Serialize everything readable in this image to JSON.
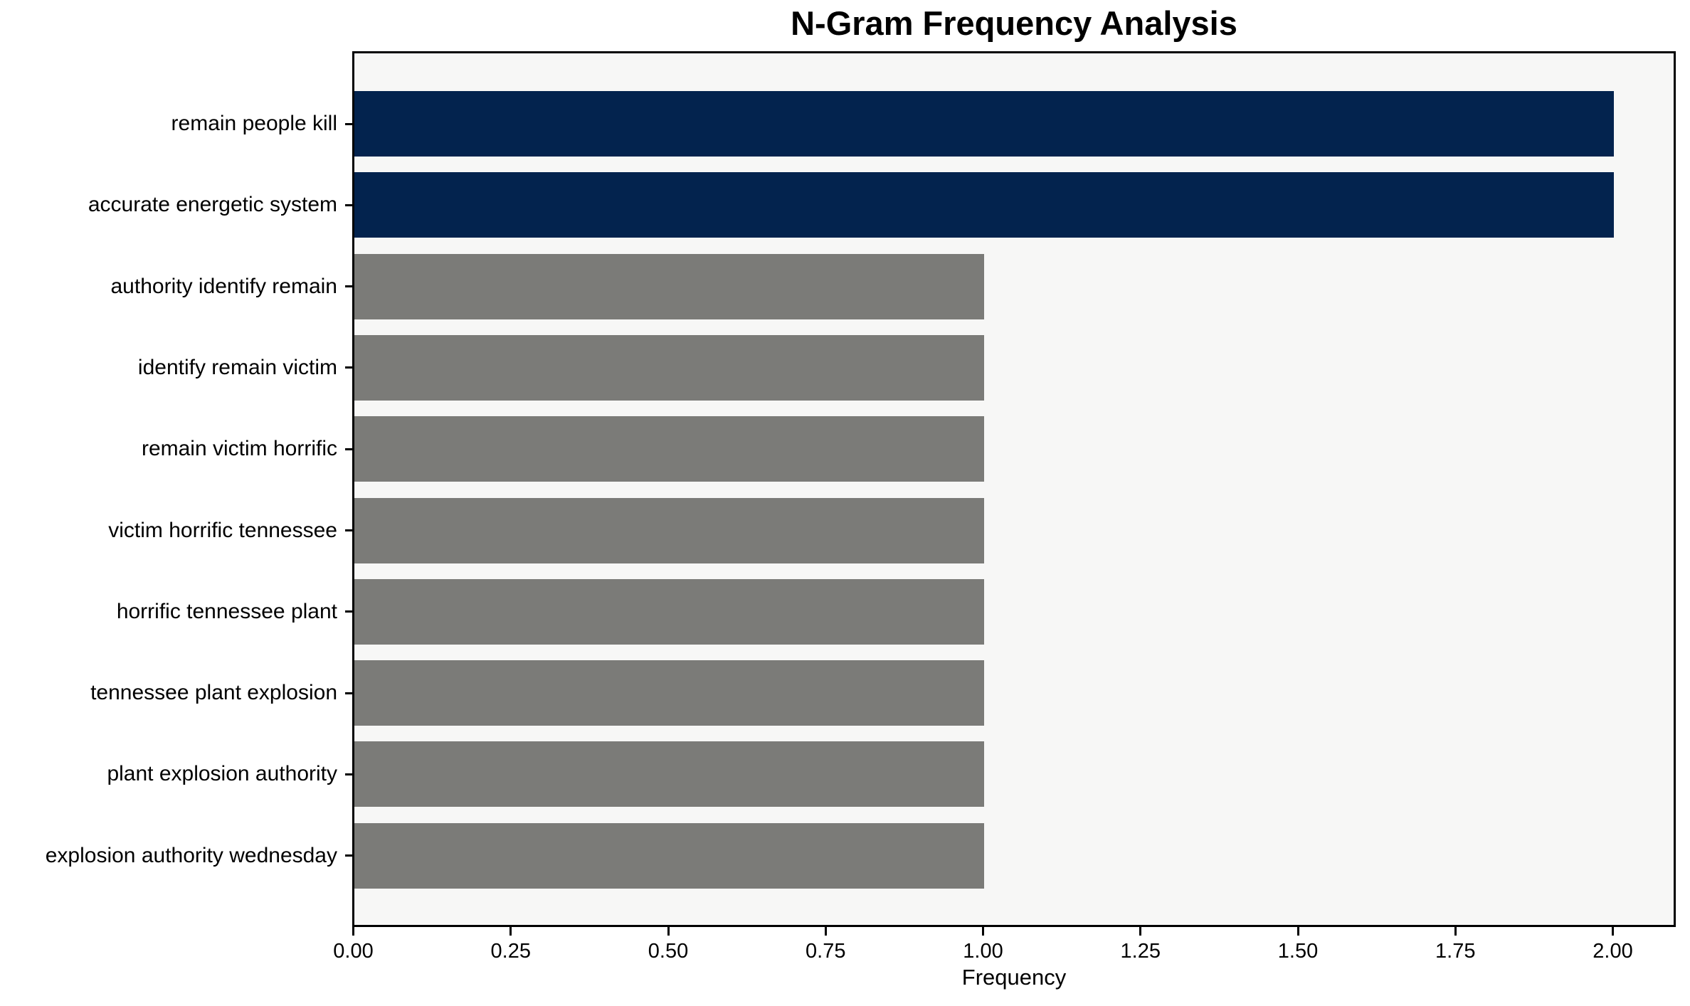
{
  "chart_data": {
    "type": "bar",
    "orientation": "horizontal",
    "title": "N-Gram Frequency Analysis",
    "xlabel": "Frequency",
    "ylabel": "",
    "categories": [
      "remain people kill",
      "accurate energetic system",
      "authority identify remain",
      "identify remain victim",
      "remain victim horrific",
      "victim horrific tennessee",
      "horrific tennessee plant",
      "tennessee plant explosion",
      "plant explosion authority",
      "explosion authority wednesday"
    ],
    "values": [
      2,
      2,
      1,
      1,
      1,
      1,
      1,
      1,
      1,
      1
    ],
    "bar_colors": [
      "#03234e",
      "#03234e",
      "#7b7b78",
      "#7b7b78",
      "#7b7b78",
      "#7b7b78",
      "#7b7b78",
      "#7b7b78",
      "#7b7b78",
      "#7b7b78"
    ],
    "highlight_color": "#03234e",
    "default_color": "#7b7b78",
    "x_ticks": [
      "0.00",
      "0.25",
      "0.50",
      "0.75",
      "1.00",
      "1.25",
      "1.50",
      "1.75",
      "2.00"
    ],
    "x_tick_values": [
      0,
      0.25,
      0.5,
      0.75,
      1.0,
      1.25,
      1.5,
      1.75,
      2.0
    ],
    "xlim": [
      0,
      2.1
    ],
    "grid": false,
    "legend": false,
    "plot_background": "#f7f7f6",
    "figure_background": "#ffffff",
    "axis_color": "#000000",
    "text_color": "#000000"
  }
}
